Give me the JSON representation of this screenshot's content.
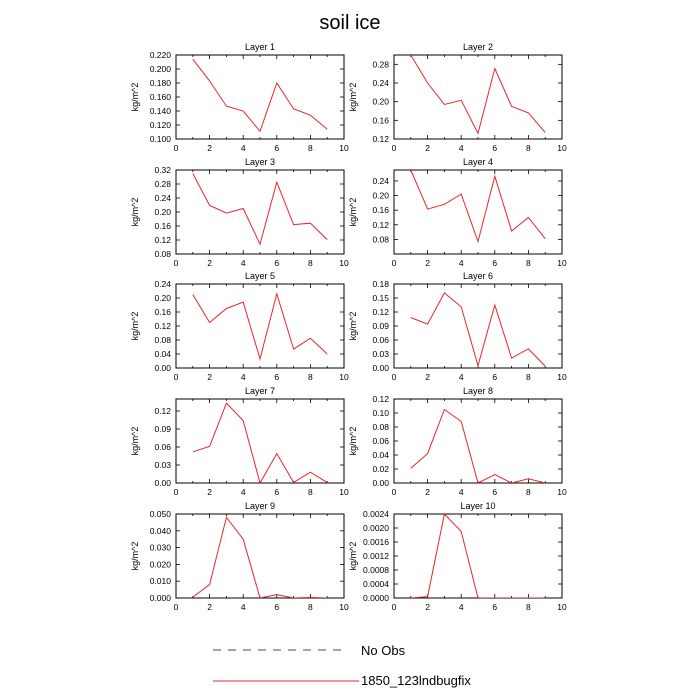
{
  "figure": {
    "title": "soil ice"
  },
  "legend": {
    "placement": "bottom-center",
    "entries": [
      {
        "name": "No Obs",
        "color": "#3b3bb0",
        "dash": "dashed"
      },
      {
        "name": "1850_123lndbugfix",
        "color": "#e8262a",
        "dash": "solid"
      }
    ]
  },
  "chart_data": [
    {
      "type": "line",
      "title": "Layer 1",
      "ylabel": "kg/m^2",
      "xlim": [
        0,
        10
      ],
      "xticks": [
        "0",
        "2",
        "4",
        "6",
        "8",
        "10"
      ],
      "ylim": [
        0.1,
        0.22
      ],
      "yticks": [
        "0.100",
        "0.120",
        "0.140",
        "0.160",
        "0.180",
        "0.200",
        "0.220"
      ],
      "series": [
        {
          "name": "1850_123lndbugfix",
          "color": "#e8262a",
          "x": [
            1,
            2,
            3,
            4,
            5,
            6,
            7,
            8,
            9
          ],
          "y": [
            0.214,
            0.183,
            0.147,
            0.14,
            0.111,
            0.18,
            0.143,
            0.134,
            0.114
          ]
        }
      ]
    },
    {
      "type": "line",
      "title": "Layer 2",
      "ylabel": "kg/m^2",
      "xlim": [
        0,
        10
      ],
      "xticks": [
        "0",
        "2",
        "4",
        "6",
        "8",
        "10"
      ],
      "ylim": [
        0.12,
        0.3
      ],
      "yticks": [
        "0.12",
        "0.16",
        "0.20",
        "0.24",
        "0.28"
      ],
      "series": [
        {
          "name": "1850_123lndbugfix",
          "color": "#e8262a",
          "x": [
            1,
            2,
            3,
            4,
            5,
            6,
            7,
            8,
            9
          ],
          "y": [
            0.3,
            0.24,
            0.194,
            0.203,
            0.132,
            0.271,
            0.19,
            0.176,
            0.134
          ]
        }
      ]
    },
    {
      "type": "line",
      "title": "Layer 3",
      "ylabel": "kg/m^2",
      "xlim": [
        0,
        10
      ],
      "xticks": [
        "0",
        "2",
        "4",
        "6",
        "8",
        "10"
      ],
      "ylim": [
        0.08,
        0.32
      ],
      "yticks": [
        "0.08",
        "0.12",
        "0.16",
        "0.20",
        "0.24",
        "0.28",
        "0.32"
      ],
      "series": [
        {
          "name": "1850_123lndbugfix",
          "color": "#e8262a",
          "x": [
            1,
            2,
            3,
            4,
            5,
            6,
            7,
            8,
            9
          ],
          "y": [
            0.31,
            0.219,
            0.197,
            0.21,
            0.108,
            0.285,
            0.164,
            0.168,
            0.121
          ]
        }
      ]
    },
    {
      "type": "line",
      "title": "Layer 4",
      "ylabel": "kg/m^2",
      "xlim": [
        0,
        10
      ],
      "xticks": [
        "0",
        "2",
        "4",
        "6",
        "8",
        "10"
      ],
      "ylim": [
        0.04,
        0.27
      ],
      "yticks": [
        "0.08",
        "0.12",
        "0.16",
        "0.20",
        "0.24"
      ],
      "series": [
        {
          "name": "1850_123lndbugfix",
          "color": "#e8262a",
          "x": [
            1,
            2,
            3,
            4,
            5,
            6,
            7,
            8,
            9
          ],
          "y": [
            0.27,
            0.163,
            0.176,
            0.204,
            0.074,
            0.253,
            0.103,
            0.14,
            0.082
          ]
        }
      ]
    },
    {
      "type": "line",
      "title": "Layer 5",
      "ylabel": "kg/m^2",
      "xlim": [
        0,
        10
      ],
      "xticks": [
        "0",
        "2",
        "4",
        "6",
        "8",
        "10"
      ],
      "ylim": [
        0,
        0.24
      ],
      "yticks": [
        "0.00",
        "0.04",
        "0.08",
        "0.12",
        "0.16",
        "0.20",
        "0.24"
      ],
      "series": [
        {
          "name": "1850_123lndbugfix",
          "color": "#e8262a",
          "x": [
            1,
            2,
            3,
            4,
            5,
            6,
            7,
            8,
            9
          ],
          "y": [
            0.21,
            0.13,
            0.17,
            0.188,
            0.026,
            0.212,
            0.054,
            0.085,
            0.04
          ]
        }
      ]
    },
    {
      "type": "line",
      "title": "Layer 6",
      "ylabel": "kg/m^2",
      "xlim": [
        0,
        10
      ],
      "xticks": [
        "0",
        "2",
        "4",
        "6",
        "8",
        "10"
      ],
      "ylim": [
        0,
        0.18
      ],
      "yticks": [
        "0.00",
        "0.03",
        "0.06",
        "0.09",
        "0.12",
        "0.15",
        "0.18"
      ],
      "series": [
        {
          "name": "1850_123lndbugfix",
          "color": "#e8262a",
          "x": [
            1,
            2,
            3,
            4,
            5,
            6,
            7,
            8,
            9
          ],
          "y": [
            0.108,
            0.094,
            0.161,
            0.131,
            0.005,
            0.135,
            0.021,
            0.041,
            0.004
          ]
        }
      ]
    },
    {
      "type": "line",
      "title": "Layer 7",
      "ylabel": "kg/m^2",
      "xlim": [
        0,
        10
      ],
      "xticks": [
        "0",
        "2",
        "4",
        "6",
        "8",
        "10"
      ],
      "ylim": [
        0,
        0.14
      ],
      "yticks": [
        "0.00",
        "0.03",
        "0.06",
        "0.09",
        "0.12"
      ],
      "series": [
        {
          "name": "1850_123lndbugfix",
          "color": "#e8262a",
          "x": [
            1,
            2,
            3,
            4,
            5,
            6,
            7,
            8,
            9
          ],
          "y": [
            0.052,
            0.061,
            0.133,
            0.104,
            0.0,
            0.049,
            0.001,
            0.018,
            0.001
          ]
        }
      ]
    },
    {
      "type": "line",
      "title": "Layer 8",
      "ylabel": "kg/m^2",
      "xlim": [
        0,
        10
      ],
      "xticks": [
        "0",
        "2",
        "4",
        "6",
        "8",
        "10"
      ],
      "ylim": [
        0,
        0.12
      ],
      "yticks": [
        "0.00",
        "0.02",
        "0.04",
        "0.06",
        "0.08",
        "0.10",
        "0.12"
      ],
      "series": [
        {
          "name": "1850_123lndbugfix",
          "color": "#e8262a",
          "x": [
            1,
            2,
            3,
            4,
            5,
            6,
            7,
            8,
            9
          ],
          "y": [
            0.021,
            0.042,
            0.105,
            0.088,
            0.0,
            0.012,
            0.0,
            0.006,
            0.0
          ]
        }
      ]
    },
    {
      "type": "line",
      "title": "Layer 9",
      "ylabel": "kg/m^2",
      "xlim": [
        0,
        10
      ],
      "xticks": [
        "0",
        "2",
        "4",
        "6",
        "8",
        "10"
      ],
      "ylim": [
        0,
        0.05
      ],
      "yticks": [
        "0.000",
        "0.010",
        "0.020",
        "0.030",
        "0.040",
        "0.050"
      ],
      "series": [
        {
          "name": "1850_123lndbugfix",
          "color": "#e8262a",
          "x": [
            1,
            2,
            3,
            4,
            5,
            6,
            7,
            8,
            9
          ],
          "y": [
            0.0005,
            0.008,
            0.048,
            0.035,
            0.0,
            0.002,
            0.0,
            0.0003,
            0.0
          ]
        }
      ]
    },
    {
      "type": "line",
      "title": "Layer 10",
      "ylabel": "kg/m^2",
      "xlim": [
        0,
        10
      ],
      "xticks": [
        "0",
        "2",
        "4",
        "6",
        "8",
        "10"
      ],
      "ylim": [
        0,
        0.0024
      ],
      "yticks": [
        "0.0000",
        "0.0004",
        "0.0008",
        "0.0012",
        "0.0016",
        "0.0020",
        "0.0024"
      ],
      "series": [
        {
          "name": "1850_123lndbugfix",
          "color": "#e8262a",
          "x": [
            1,
            2,
            3,
            4,
            5,
            6,
            7,
            8,
            9
          ],
          "y": [
            0.0,
            4e-05,
            0.0024,
            0.0019,
            0.0,
            0.0,
            0.0,
            0.0,
            0.0
          ]
        }
      ]
    }
  ]
}
